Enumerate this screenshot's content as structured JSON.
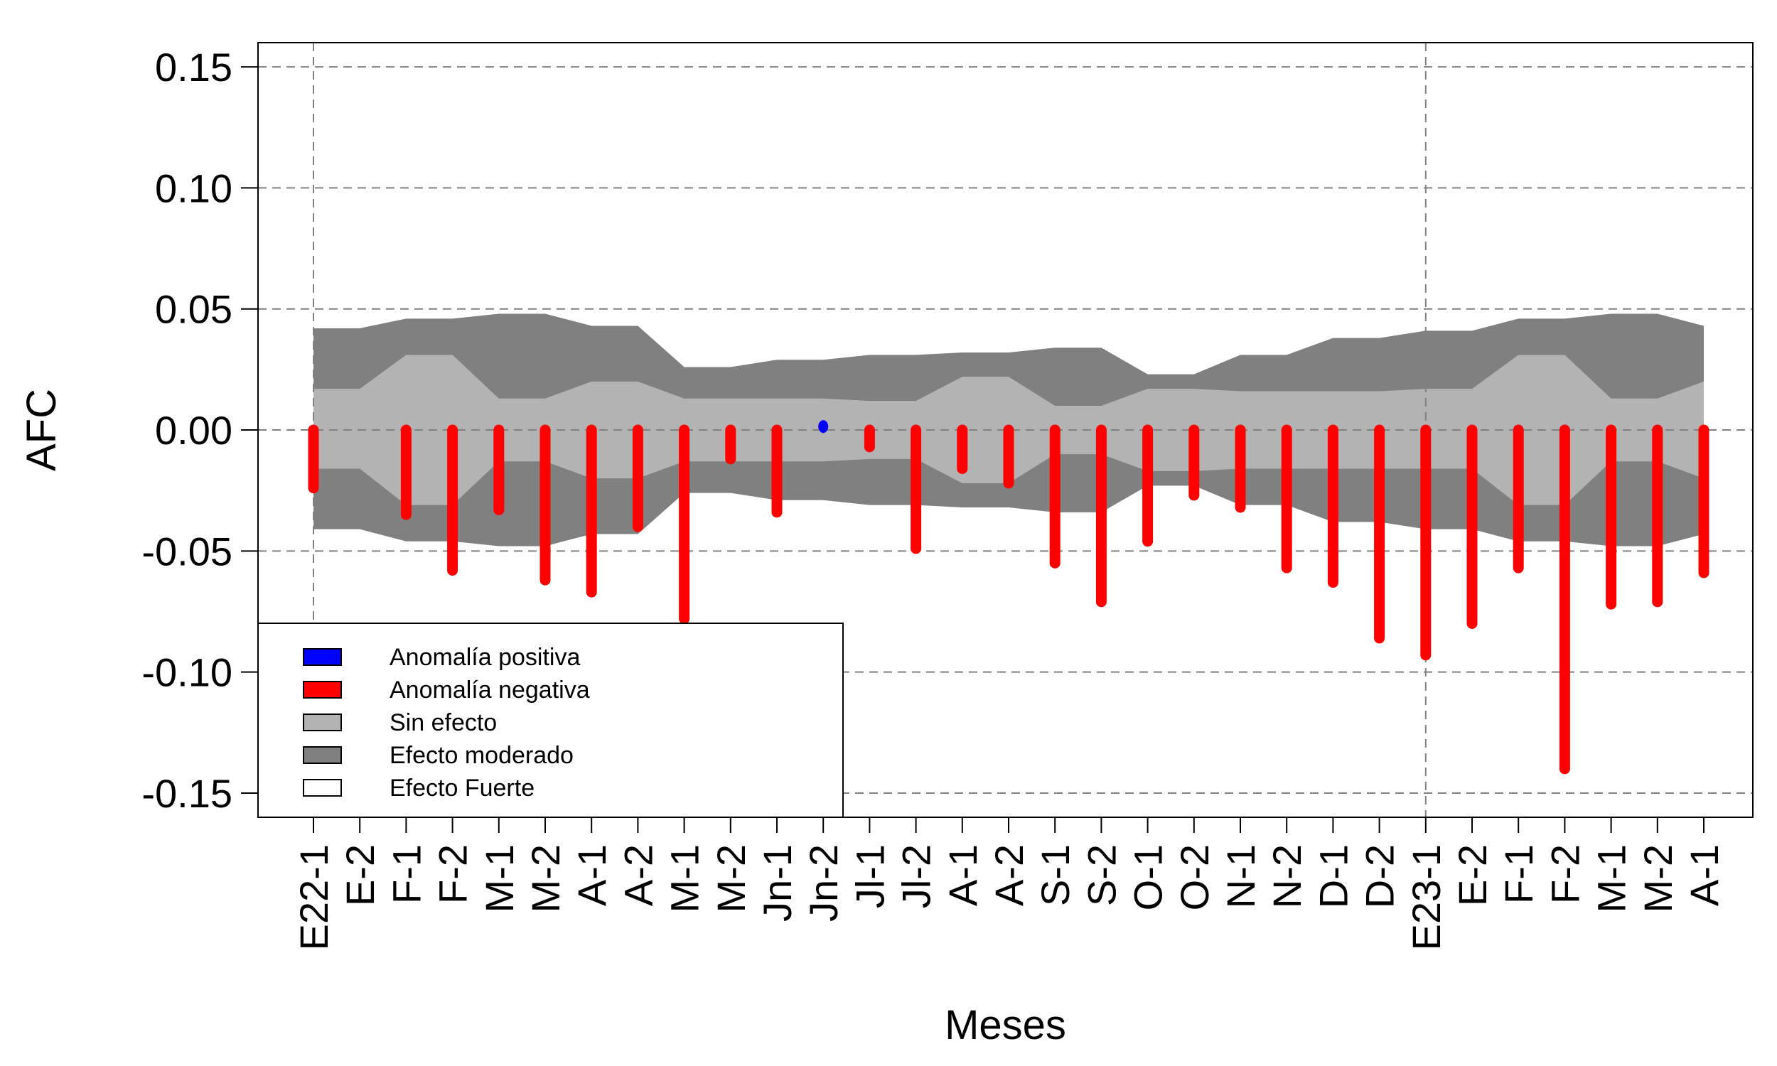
{
  "chart_data": {
    "type": "bar",
    "xlabel": "Meses",
    "ylabel": "AFC",
    "ylim": [
      -0.16,
      0.16
    ],
    "yticks": [
      0.15,
      0.1,
      0.05,
      0.0,
      -0.05,
      -0.1,
      -0.15
    ],
    "ytick_labels": [
      "0.15",
      "0.10",
      "0.05",
      "0.00",
      "-0.05",
      "-0.10",
      "-0.15"
    ],
    "grid": true,
    "year_start_markers": [
      "E22-1",
      "E23-1"
    ],
    "categories": [
      "E22-1",
      "E-2",
      "F-1",
      "F-2",
      "M-1",
      "M-2",
      "A-1",
      "A-2",
      "M-1",
      "M-2",
      "Jn-1",
      "Jn-2",
      "Jl-1",
      "Jl-2",
      "A-1",
      "A-2",
      "S-1",
      "S-2",
      "O-1",
      "O-2",
      "N-1",
      "N-2",
      "D-1",
      "D-2",
      "E23-1",
      "E-2",
      "F-1",
      "F-2",
      "M-1",
      "M-2",
      "A-1"
    ],
    "series": [
      {
        "name": "AFC",
        "values": [
          -0.024,
          null,
          -0.035,
          -0.058,
          -0.033,
          -0.062,
          -0.067,
          -0.04,
          -0.078,
          -0.012,
          -0.034,
          0.002,
          -0.007,
          -0.049,
          -0.016,
          -0.022,
          -0.055,
          -0.071,
          -0.046,
          -0.027,
          -0.032,
          -0.057,
          -0.063,
          -0.086,
          -0.093,
          -0.08,
          -0.057,
          -0.14,
          -0.072,
          -0.071,
          -0.059
        ]
      }
    ],
    "bands": {
      "sin_efecto_upper": [
        0.017,
        0.017,
        0.031,
        0.031,
        0.013,
        0.013,
        0.02,
        0.02,
        0.013,
        0.013,
        0.013,
        0.013,
        0.012,
        0.012,
        0.022,
        0.022,
        0.01,
        0.01,
        0.017,
        0.017,
        0.016,
        0.016,
        0.016,
        0.016,
        0.017,
        0.017,
        0.031,
        0.031,
        0.013,
        0.013,
        0.02
      ],
      "sin_efecto_lower": [
        -0.016,
        -0.016,
        -0.031,
        -0.031,
        -0.013,
        -0.013,
        -0.02,
        -0.02,
        -0.013,
        -0.013,
        -0.013,
        -0.013,
        -0.012,
        -0.012,
        -0.022,
        -0.022,
        -0.01,
        -0.01,
        -0.017,
        -0.017,
        -0.016,
        -0.016,
        -0.016,
        -0.016,
        -0.016,
        -0.016,
        -0.031,
        -0.031,
        -0.013,
        -0.013,
        -0.02
      ],
      "moderado_upper": [
        0.042,
        0.042,
        0.046,
        0.046,
        0.048,
        0.048,
        0.043,
        0.043,
        0.026,
        0.026,
        0.029,
        0.029,
        0.031,
        0.031,
        0.032,
        0.032,
        0.034,
        0.034,
        0.023,
        0.023,
        0.031,
        0.031,
        0.038,
        0.038,
        0.041,
        0.041,
        0.046,
        0.046,
        0.048,
        0.048,
        0.043
      ],
      "moderado_lower": [
        -0.041,
        -0.041,
        -0.046,
        -0.046,
        -0.048,
        -0.048,
        -0.043,
        -0.043,
        -0.026,
        -0.026,
        -0.029,
        -0.029,
        -0.031,
        -0.031,
        -0.032,
        -0.032,
        -0.034,
        -0.034,
        -0.023,
        -0.023,
        -0.031,
        -0.031,
        -0.038,
        -0.038,
        -0.041,
        -0.041,
        -0.046,
        -0.046,
        -0.048,
        -0.048,
        -0.043
      ]
    },
    "legend": {
      "position": "bottom-left",
      "entries": [
        {
          "label": "Anomalía positiva",
          "color": "#0000ff"
        },
        {
          "label": "Anomalía negativa",
          "color": "#ff0000"
        },
        {
          "label": "Sin efecto",
          "color": "#b3b3b3"
        },
        {
          "label": "Efecto moderado",
          "color": "#808080"
        },
        {
          "label": "Efecto Fuerte",
          "color": "#ffffff"
        }
      ]
    },
    "colors": {
      "positive": "#0000ff",
      "negative": "#ff0000",
      "sin_efecto": "#b3b3b3",
      "moderado": "#808080",
      "grid": "#808080"
    }
  }
}
